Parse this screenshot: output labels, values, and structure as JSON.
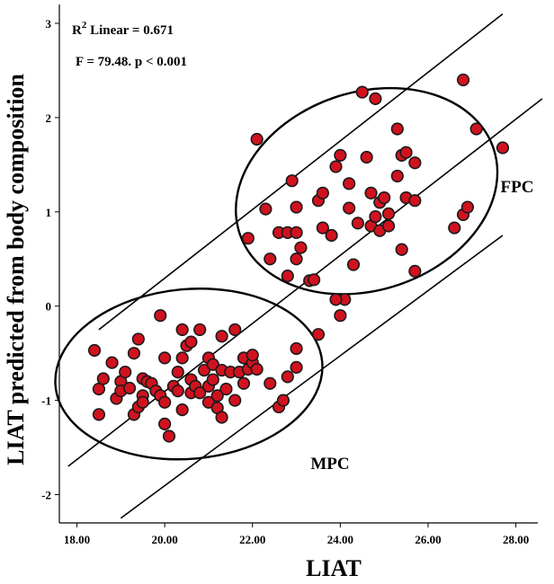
{
  "chart_data": {
    "type": "scatter",
    "title": "",
    "xlabel": "LIAT",
    "ylabel": "LIAT predicted from body composition",
    "xlim": [
      17.6,
      28.5
    ],
    "ylim": [
      -2.3,
      3.2
    ],
    "x_ticks": [
      "18.00",
      "20.00",
      "22.00",
      "24.00",
      "26.00",
      "28.00"
    ],
    "y_ticks": [
      "-2",
      "-1",
      "0",
      "1",
      "2",
      "3"
    ],
    "x_tick_values": [
      18,
      20,
      22,
      24,
      26,
      28
    ],
    "y_tick_values": [
      -2,
      -1,
      0,
      1,
      2,
      3
    ],
    "grid": false,
    "legend": "none",
    "colors": {
      "point_fill": "#d0121f",
      "point_stroke": "#1a1a1a",
      "line": "#000000"
    },
    "stats": {
      "r2_prefix": "R",
      "r2_sup": "2",
      "r2_suffix": " Linear = 0.671",
      "f_line": "F = 79.48. p < 0.001"
    },
    "groups": [
      {
        "label": "FPC",
        "cx": 24.6,
        "cy": 1.22,
        "rx": 3.05,
        "ry": 1.05,
        "angle": 0.36
      },
      {
        "label": "MPC",
        "cx": 20.55,
        "cy": -0.72,
        "rx": 3.05,
        "ry": 0.9,
        "angle": 0.1
      }
    ],
    "lines": [
      {
        "x": [
          18.5,
          27.7
        ],
        "y": [
          -0.25,
          3.1
        ]
      },
      {
        "x": [
          17.8,
          28.6
        ],
        "y": [
          -1.7,
          2.2
        ]
      },
      {
        "x": [
          19.0,
          27.7
        ],
        "y": [
          -2.25,
          0.75
        ]
      }
    ],
    "points": [
      [
        18.4,
        -0.47
      ],
      [
        18.5,
        -0.88
      ],
      [
        18.6,
        -0.77
      ],
      [
        18.5,
        -1.15
      ],
      [
        18.8,
        -0.6
      ],
      [
        18.9,
        -0.98
      ],
      [
        19.0,
        -0.8
      ],
      [
        19.1,
        -0.7
      ],
      [
        19.0,
        -0.9
      ],
      [
        19.2,
        -0.87
      ],
      [
        19.3,
        -0.5
      ],
      [
        19.4,
        -0.35
      ],
      [
        19.3,
        -1.15
      ],
      [
        19.4,
        -1.07
      ],
      [
        19.5,
        -0.95
      ],
      [
        19.5,
        -0.77
      ],
      [
        19.6,
        -0.8
      ],
      [
        19.7,
        -0.82
      ],
      [
        19.5,
        -1.02
      ],
      [
        19.8,
        -0.9
      ],
      [
        19.9,
        -0.95
      ],
      [
        19.9,
        -0.1
      ],
      [
        20.0,
        -0.55
      ],
      [
        20.0,
        -1.25
      ],
      [
        20.0,
        -1.02
      ],
      [
        20.1,
        -1.38
      ],
      [
        20.2,
        -0.85
      ],
      [
        20.3,
        -0.9
      ],
      [
        20.3,
        -0.7
      ],
      [
        20.4,
        -0.55
      ],
      [
        20.4,
        -0.25
      ],
      [
        20.5,
        -0.42
      ],
      [
        20.4,
        -1.1
      ],
      [
        20.6,
        -0.78
      ],
      [
        20.6,
        -0.92
      ],
      [
        20.6,
        -0.38
      ],
      [
        20.7,
        -0.85
      ],
      [
        20.8,
        -0.92
      ],
      [
        20.9,
        -0.68
      ],
      [
        20.8,
        -0.25
      ],
      [
        21.0,
        -0.55
      ],
      [
        21.0,
        -0.85
      ],
      [
        21.0,
        -1.02
      ],
      [
        21.1,
        -0.62
      ],
      [
        21.1,
        -0.78
      ],
      [
        21.2,
        -1.08
      ],
      [
        21.2,
        -0.95
      ],
      [
        21.3,
        -0.68
      ],
      [
        21.3,
        -0.32
      ],
      [
        21.3,
        -1.18
      ],
      [
        21.4,
        -0.88
      ],
      [
        21.5,
        -0.7
      ],
      [
        21.6,
        -0.25
      ],
      [
        21.6,
        -1.0
      ],
      [
        21.7,
        -0.7
      ],
      [
        21.8,
        -0.55
      ],
      [
        21.8,
        -0.82
      ],
      [
        21.9,
        -0.67
      ],
      [
        22.0,
        -0.6
      ],
      [
        22.1,
        -0.67
      ],
      [
        22.0,
        -0.52
      ],
      [
        22.4,
        -0.82
      ],
      [
        22.6,
        -1.07
      ],
      [
        22.7,
        -1.0
      ],
      [
        22.8,
        -0.75
      ],
      [
        23.0,
        -0.45
      ],
      [
        23.0,
        -0.65
      ],
      [
        22.1,
        1.77
      ],
      [
        21.9,
        0.72
      ],
      [
        22.3,
        1.03
      ],
      [
        22.4,
        0.5
      ],
      [
        22.6,
        0.78
      ],
      [
        22.8,
        0.78
      ],
      [
        22.8,
        0.32
      ],
      [
        22.9,
        1.33
      ],
      [
        23.0,
        1.05
      ],
      [
        23.0,
        0.78
      ],
      [
        23.0,
        0.5
      ],
      [
        23.1,
        0.62
      ],
      [
        23.3,
        0.27
      ],
      [
        23.4,
        0.28
      ],
      [
        23.5,
        1.12
      ],
      [
        23.6,
        1.2
      ],
      [
        23.6,
        0.83
      ],
      [
        23.8,
        0.75
      ],
      [
        23.5,
        -0.3
      ],
      [
        23.9,
        1.48
      ],
      [
        24.0,
        1.6
      ],
      [
        24.1,
        0.07
      ],
      [
        24.2,
        1.3
      ],
      [
        24.2,
        1.04
      ],
      [
        24.3,
        0.44
      ],
      [
        24.4,
        0.88
      ],
      [
        24.5,
        2.27
      ],
      [
        24.6,
        1.58
      ],
      [
        24.7,
        1.2
      ],
      [
        24.7,
        0.85
      ],
      [
        24.8,
        2.2
      ],
      [
        24.8,
        0.95
      ],
      [
        24.9,
        1.1
      ],
      [
        24.9,
        0.8
      ],
      [
        25.0,
        1.15
      ],
      [
        25.1,
        0.98
      ],
      [
        25.1,
        0.85
      ],
      [
        25.3,
        1.38
      ],
      [
        25.3,
        1.88
      ],
      [
        25.4,
        1.6
      ],
      [
        25.4,
        0.6
      ],
      [
        25.5,
        1.63
      ],
      [
        25.5,
        1.15
      ],
      [
        25.7,
        1.12
      ],
      [
        25.7,
        1.52
      ],
      [
        25.7,
        0.37
      ],
      [
        26.6,
        0.83
      ],
      [
        26.8,
        2.4
      ],
      [
        26.8,
        0.97
      ],
      [
        26.9,
        1.05
      ],
      [
        27.1,
        1.88
      ],
      [
        27.7,
        1.68
      ],
      [
        24.0,
        -0.1
      ],
      [
        23.9,
        0.07
      ]
    ]
  }
}
